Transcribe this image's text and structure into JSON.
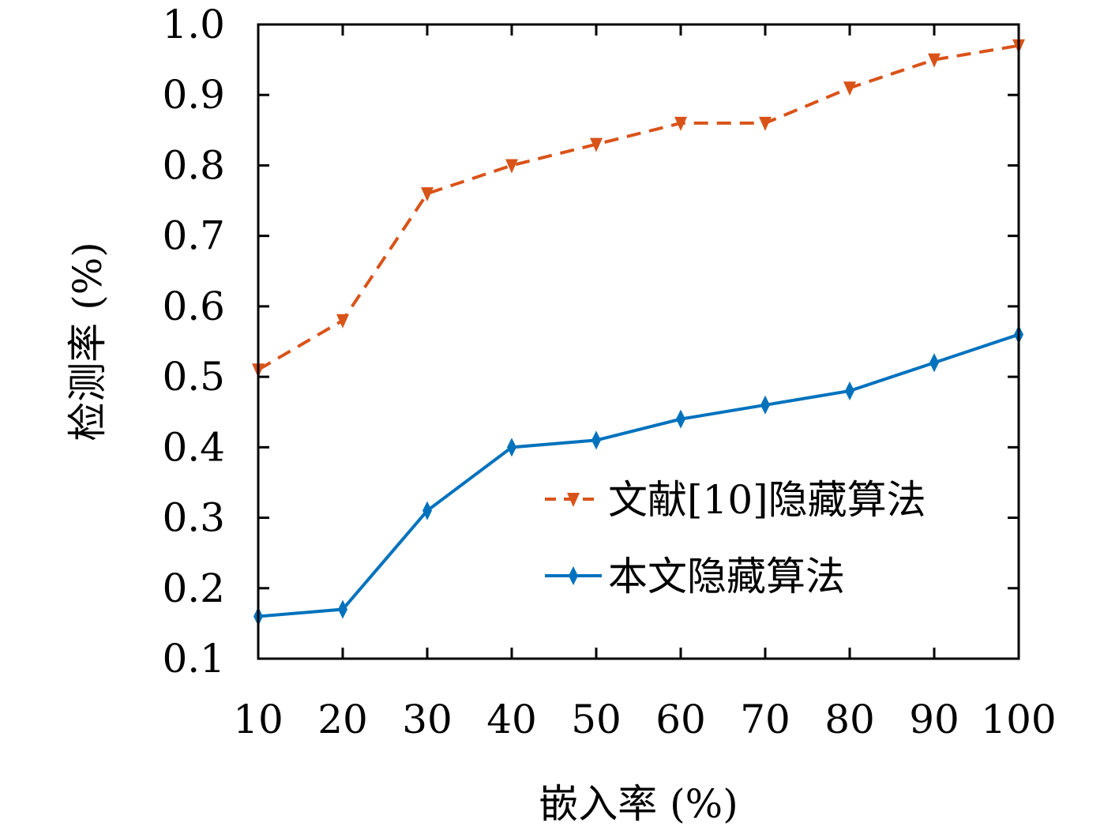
{
  "chart_data": {
    "type": "line",
    "title": "",
    "xlabel": "嵌入率 (%)",
    "ylabel": "检测率 (%)",
    "x": [
      10,
      20,
      30,
      40,
      50,
      60,
      70,
      80,
      90,
      100
    ],
    "xlim": [
      10,
      100
    ],
    "ylim": [
      0.1,
      1.0
    ],
    "xticks": [
      "10",
      "20",
      "30",
      "40",
      "50",
      "60",
      "70",
      "80",
      "90",
      "100"
    ],
    "yticks": [
      "0.1",
      "0.2",
      "0.3",
      "0.4",
      "0.5",
      "0.6",
      "0.7",
      "0.8",
      "0.9",
      "1.0"
    ],
    "ytick_values": [
      0.1,
      0.2,
      0.3,
      0.4,
      0.5,
      0.6,
      0.7,
      0.8,
      0.9,
      1.0
    ],
    "grid": false,
    "legend_position": "lower-right",
    "series": [
      {
        "name": "文献[10]隐藏算法",
        "color": "#D95319",
        "line_style": "dashed",
        "marker": "triangle-down",
        "values": [
          0.51,
          0.58,
          0.76,
          0.8,
          0.83,
          0.86,
          0.86,
          0.91,
          0.95,
          0.97
        ]
      },
      {
        "name": "本文隐藏算法",
        "color": "#0072BD",
        "line_style": "solid",
        "marker": "diamond",
        "values": [
          0.16,
          0.17,
          0.31,
          0.4,
          0.41,
          0.44,
          0.46,
          0.48,
          0.52,
          0.56
        ]
      }
    ]
  }
}
